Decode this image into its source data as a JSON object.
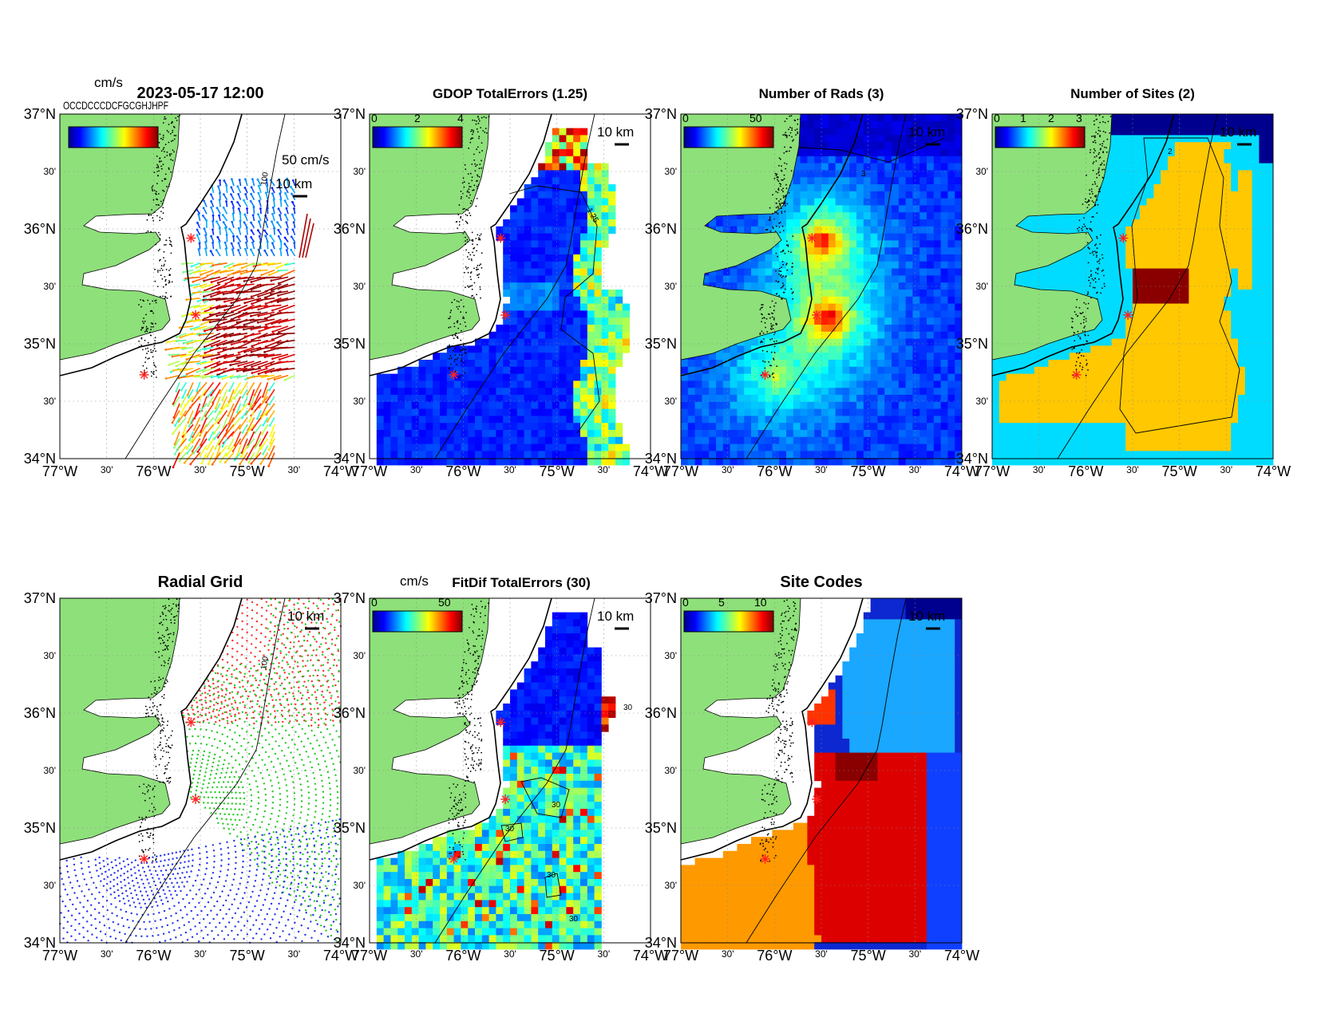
{
  "figure": {
    "timestamp": "2023-05-17 12:00",
    "overlapped_legend_text": "OCCDCCCDCFGCGHJHPF"
  },
  "axes_labels": {
    "lat": [
      "37°N",
      "30'",
      "36°N",
      "30'",
      "35°N",
      "30'",
      "34°N"
    ],
    "lon": [
      "77°W",
      "30'",
      "76°W",
      "30'",
      "75°W",
      "30'",
      "74°W"
    ],
    "lon_range": [
      -77,
      -74
    ],
    "lat_range": [
      34,
      37
    ]
  },
  "scale_bar": "10 km",
  "isobath_label": "100",
  "sites_lonlat": [
    [
      -75.6,
      35.92
    ],
    [
      -75.55,
      35.25
    ],
    [
      -76.1,
      34.73
    ]
  ],
  "colors": {
    "land": "#8ee07a",
    "water": "#ffffff",
    "site_marker": "#ff2222",
    "radial_site_colors": [
      "#ff2a2a",
      "#22cc22",
      "#2233ee"
    ]
  },
  "panels": [
    {
      "id": "total-currents",
      "title": "",
      "colorbar": {
        "unit": "cm/s",
        "ticks": []
      },
      "vector_scale": "50 cm/s"
    },
    {
      "id": "gdop",
      "title": "GDOP TotalErrors (1.25)",
      "colorbar": {
        "ticks": [
          "0",
          "2",
          "4"
        ]
      },
      "contour_label": "1.25"
    },
    {
      "id": "num-rads",
      "title": "Number of Rads (3)",
      "colorbar": {
        "ticks": [
          "0",
          "50"
        ]
      },
      "contour_label": "3"
    },
    {
      "id": "num-sites",
      "title": "Number of Sites (2)",
      "colorbar": {
        "ticks": [
          "0",
          "1",
          "2",
          "3"
        ]
      },
      "contour_label": "2"
    },
    {
      "id": "radial-grid",
      "title": "Radial Grid"
    },
    {
      "id": "fitdif",
      "title": "FitDif TotalErrors (30)",
      "colorbar": {
        "unit": "cm/s",
        "ticks": [
          "0",
          "50"
        ]
      },
      "contour_label": "30"
    },
    {
      "id": "site-codes",
      "title": "Site Codes",
      "colorbar": {
        "ticks": [
          "0",
          "5",
          "10"
        ]
      }
    }
  ]
}
